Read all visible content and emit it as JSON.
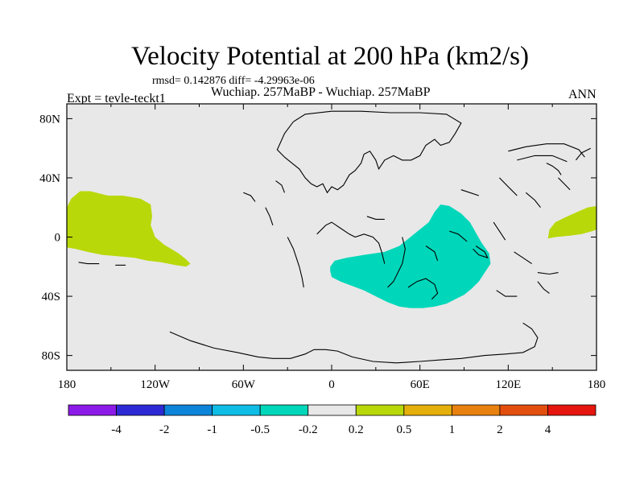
{
  "title": "Velocity Potential at 200 hPa (km2/s)",
  "stats": "rmsd= 0.142876 diff= -4.29963e-06",
  "subtitle": "Wuchiap. 257MaBP - Wuchiap. 257MaBP",
  "left_label": "Expt = tevle-teckt1",
  "right_label": "ANN",
  "map": {
    "projection": "cylindrical-equidistant",
    "lon_range": [
      -180,
      180
    ],
    "lat_range": [
      -90,
      90
    ],
    "lat_ticks": [
      {
        "value": 80,
        "label": "80N"
      },
      {
        "value": 40,
        "label": "40N"
      },
      {
        "value": 0,
        "label": "0"
      },
      {
        "value": -40,
        "label": "40S"
      },
      {
        "value": -80,
        "label": "80S"
      }
    ],
    "lon_ticks": [
      {
        "value": -180,
        "label": "180"
      },
      {
        "value": -120,
        "label": "120W"
      },
      {
        "value": -60,
        "label": "60W"
      },
      {
        "value": 0,
        "label": "0"
      },
      {
        "value": 60,
        "label": "60E"
      },
      {
        "value": 120,
        "label": "120E"
      },
      {
        "value": 180,
        "label": "180"
      }
    ],
    "background_color": "#e8e8e8",
    "shaded_regions": [
      {
        "name": "pacific-positive",
        "range": "0.2 to 0.5",
        "color": "#b9d80a",
        "polygon": [
          [
            -180,
            20
          ],
          [
            -177,
            26
          ],
          [
            -171,
            31
          ],
          [
            -164,
            31
          ],
          [
            -152,
            28
          ],
          [
            -142,
            28
          ],
          [
            -130,
            26
          ],
          [
            -123,
            22
          ],
          [
            -122,
            14
          ],
          [
            -123,
            8
          ],
          [
            -120,
            0
          ],
          [
            -114,
            -5
          ],
          [
            -104,
            -11
          ],
          [
            -99,
            -15
          ],
          [
            -96,
            -18
          ],
          [
            -99,
            -20
          ],
          [
            -106,
            -19
          ],
          [
            -116,
            -17
          ],
          [
            -125,
            -16
          ],
          [
            -134,
            -14
          ],
          [
            -145,
            -13
          ],
          [
            -156,
            -12
          ],
          [
            -166,
            -10
          ],
          [
            -174,
            -8
          ],
          [
            -180,
            -7
          ]
        ]
      },
      {
        "name": "east-edge-positive",
        "range": "0.2 to 0.5",
        "color": "#b9d80a",
        "polygon": [
          [
            180,
            21
          ],
          [
            174,
            20
          ],
          [
            167,
            17
          ],
          [
            158,
            13
          ],
          [
            152,
            10
          ],
          [
            148,
            5
          ],
          [
            147,
            -1
          ],
          [
            152,
            0
          ],
          [
            162,
            1
          ],
          [
            170,
            2
          ],
          [
            177,
            4
          ],
          [
            180,
            5
          ]
        ]
      },
      {
        "name": "central-negative",
        "range": "-0.5 to -0.2",
        "color": "#00d7ba",
        "polygon": [
          [
            -1,
            -20
          ],
          [
            2,
            -16
          ],
          [
            10,
            -14
          ],
          [
            22,
            -12
          ],
          [
            36,
            -10
          ],
          [
            46,
            -6
          ],
          [
            56,
            2
          ],
          [
            66,
            10
          ],
          [
            70,
            17
          ],
          [
            74,
            22
          ],
          [
            80,
            21
          ],
          [
            88,
            16
          ],
          [
            94,
            10
          ],
          [
            98,
            3
          ],
          [
            102,
            -4
          ],
          [
            107,
            -11
          ],
          [
            108,
            -18
          ],
          [
            104,
            -24
          ],
          [
            100,
            -30
          ],
          [
            95,
            -35
          ],
          [
            90,
            -39
          ],
          [
            84,
            -42
          ],
          [
            78,
            -45
          ],
          [
            70,
            -47
          ],
          [
            62,
            -48
          ],
          [
            54,
            -48
          ],
          [
            46,
            -47
          ],
          [
            38,
            -44
          ],
          [
            30,
            -40
          ],
          [
            22,
            -36
          ],
          [
            14,
            -33
          ],
          [
            6,
            -30
          ],
          [
            0,
            -27
          ],
          [
            -1,
            -23
          ]
        ]
      }
    ],
    "coastlines": [
      {
        "closed": true,
        "points": [
          [
            -37,
            59
          ],
          [
            -32,
            70
          ],
          [
            -26,
            78
          ],
          [
            -18,
            83
          ],
          [
            0,
            85
          ],
          [
            20,
            85
          ],
          [
            40,
            84
          ],
          [
            60,
            84
          ],
          [
            78,
            83
          ],
          [
            88,
            77
          ],
          [
            84,
            70
          ],
          [
            80,
            64
          ],
          [
            74,
            62
          ],
          [
            70,
            66
          ],
          [
            64,
            62
          ],
          [
            60,
            55
          ],
          [
            54,
            52
          ],
          [
            48,
            52
          ],
          [
            42,
            55
          ],
          [
            36,
            52
          ],
          [
            32,
            46
          ],
          [
            30,
            52
          ],
          [
            26,
            58
          ],
          [
            22,
            56
          ],
          [
            20,
            50
          ],
          [
            16,
            45
          ],
          [
            12,
            42
          ],
          [
            8,
            35
          ],
          [
            4,
            32
          ],
          [
            0,
            34
          ],
          [
            -3,
            30
          ],
          [
            -6,
            36
          ],
          [
            -10,
            34
          ],
          [
            -14,
            36
          ],
          [
            -18,
            40
          ],
          [
            -22,
            46
          ],
          [
            -27,
            50
          ],
          [
            -32,
            54
          ]
        ]
      },
      {
        "closed": false,
        "points": [
          [
            -110,
            -64
          ],
          [
            -96,
            -70
          ],
          [
            -80,
            -75
          ],
          [
            -64,
            -78
          ],
          [
            -50,
            -81
          ],
          [
            -40,
            -82
          ],
          [
            -28,
            -82
          ],
          [
            -18,
            -79
          ],
          [
            -12,
            -76
          ],
          [
            -4,
            -76
          ],
          [
            4,
            -77
          ],
          [
            14,
            -81
          ],
          [
            28,
            -84
          ],
          [
            44,
            -85
          ],
          [
            60,
            -84
          ],
          [
            74,
            -83
          ],
          [
            88,
            -82
          ],
          [
            104,
            -80
          ],
          [
            118,
            -79
          ],
          [
            130,
            -78
          ],
          [
            138,
            -74
          ],
          [
            140,
            -68
          ],
          [
            136,
            -62
          ],
          [
            130,
            -58
          ]
        ]
      },
      {
        "closed": false,
        "points": [
          [
            -30,
            0
          ],
          [
            -26,
            -8
          ],
          [
            -22,
            -20
          ],
          [
            -20,
            -28
          ],
          [
            -19,
            -34
          ]
        ]
      },
      {
        "closed": false,
        "points": [
          [
            -10,
            2
          ],
          [
            -4,
            8
          ],
          [
            0,
            10
          ],
          [
            6,
            6
          ],
          [
            12,
            2
          ],
          [
            16,
            0
          ],
          [
            22,
            2
          ],
          [
            28,
            0
          ],
          [
            32,
            -4
          ],
          [
            34,
            -10
          ],
          [
            36,
            -18
          ]
        ]
      },
      {
        "closed": false,
        "points": [
          [
            48,
            0
          ],
          [
            50,
            -8
          ],
          [
            48,
            -18
          ],
          [
            42,
            -30
          ],
          [
            38,
            -34
          ]
        ]
      },
      {
        "closed": false,
        "points": [
          [
            52,
            -34
          ],
          [
            58,
            -30
          ],
          [
            64,
            -28
          ],
          [
            70,
            -32
          ],
          [
            72,
            -38
          ],
          [
            68,
            -42
          ]
        ]
      },
      {
        "closed": false,
        "points": [
          [
            120,
            58
          ],
          [
            132,
            61
          ],
          [
            146,
            63
          ],
          [
            158,
            63
          ],
          [
            168,
            59
          ],
          [
            172,
            54
          ]
        ]
      },
      {
        "closed": false,
        "points": [
          [
            126,
            52
          ],
          [
            138,
            55
          ],
          [
            150,
            55
          ],
          [
            160,
            51
          ]
        ]
      },
      {
        "closed": false,
        "points": [
          [
            -172,
            -17
          ],
          [
            -166,
            -18
          ],
          [
            -158,
            -18
          ]
        ]
      },
      {
        "closed": false,
        "points": [
          [
            -147,
            -19
          ],
          [
            -140,
            -19
          ]
        ]
      },
      {
        "closed": false,
        "points": [
          [
            -60,
            30
          ],
          [
            -55,
            28
          ],
          [
            -52,
            24
          ]
        ]
      },
      {
        "closed": false,
        "points": [
          [
            -45,
            20
          ],
          [
            -42,
            14
          ],
          [
            -40,
            8
          ]
        ]
      },
      {
        "closed": false,
        "points": [
          [
            -38,
            38
          ],
          [
            -34,
            35
          ],
          [
            -32,
            30
          ]
        ]
      },
      {
        "closed": false,
        "points": [
          [
            80,
            4
          ],
          [
            86,
            2
          ],
          [
            92,
            -3
          ]
        ]
      },
      {
        "closed": false,
        "points": [
          [
            96,
            -8
          ],
          [
            100,
            -12
          ],
          [
            106,
            -14
          ],
          [
            104,
            -10
          ],
          [
            98,
            -6
          ]
        ]
      },
      {
        "closed": false,
        "points": [
          [
            110,
            10
          ],
          [
            114,
            4
          ],
          [
            118,
            -2
          ]
        ]
      },
      {
        "closed": false,
        "points": [
          [
            124,
            -10
          ],
          [
            130,
            -14
          ],
          [
            136,
            -18
          ]
        ]
      },
      {
        "closed": false,
        "points": [
          [
            140,
            -24
          ],
          [
            148,
            -25
          ],
          [
            154,
            -24
          ]
        ]
      },
      {
        "closed": false,
        "points": [
          [
            112,
            -36
          ],
          [
            118,
            -40
          ],
          [
            126,
            -40
          ]
        ]
      },
      {
        "closed": false,
        "points": [
          [
            140,
            -30
          ],
          [
            144,
            -35
          ],
          [
            148,
            -38
          ]
        ]
      },
      {
        "closed": false,
        "points": [
          [
            114,
            40
          ],
          [
            120,
            34
          ],
          [
            126,
            28
          ]
        ]
      },
      {
        "closed": false,
        "points": [
          [
            132,
            30
          ],
          [
            138,
            25
          ],
          [
            142,
            20
          ]
        ]
      },
      {
        "closed": false,
        "points": [
          [
            154,
            40
          ],
          [
            158,
            36
          ],
          [
            162,
            32
          ]
        ]
      },
      {
        "closed": false,
        "points": [
          [
            146,
            50
          ],
          [
            150,
            48
          ],
          [
            154,
            45
          ],
          [
            156,
            42
          ]
        ]
      },
      {
        "closed": false,
        "points": [
          [
            166,
            52
          ],
          [
            170,
            57
          ],
          [
            176,
            60
          ]
        ]
      },
      {
        "closed": false,
        "points": [
          [
            24,
            14
          ],
          [
            30,
            12
          ],
          [
            36,
            12
          ]
        ]
      },
      {
        "closed": false,
        "points": [
          [
            88,
            32
          ],
          [
            94,
            30
          ],
          [
            100,
            28
          ]
        ]
      },
      {
        "closed": false,
        "points": [
          [
            64,
            -6
          ],
          [
            70,
            -10
          ],
          [
            72,
            -16
          ]
        ]
      }
    ]
  },
  "colorbar": {
    "colors": [
      "#8c1ae8",
      "#2d2ad5",
      "#0b84d9",
      "#0ebce6",
      "#00d7ba",
      "#e8e8e8",
      "#b9d80a",
      "#e5b00b",
      "#e98110",
      "#e34e0e",
      "#e4160e"
    ],
    "labels": [
      "-4",
      "-2",
      "-1",
      "-0.5",
      "-0.2",
      "0.2",
      "0.5",
      "1",
      "2",
      "4"
    ]
  }
}
